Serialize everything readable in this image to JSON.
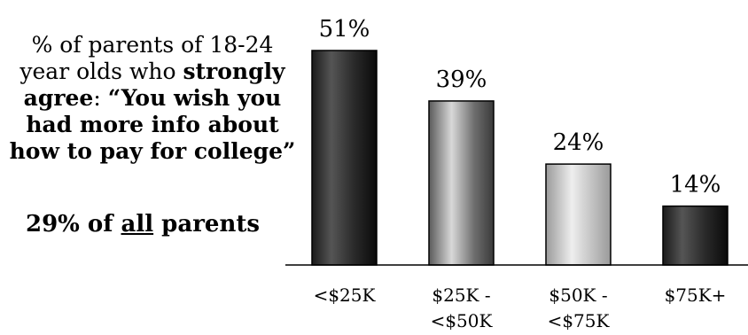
{
  "caption": {
    "line1": "% of parents of 18-24",
    "line2_pre": "year olds who ",
    "line2_bold": "strongly",
    "line3_bold": "agree",
    "line3_mid": ": ",
    "line3_quote": "“You wish you",
    "line4": "had more info about",
    "line5": "how to pay for college”"
  },
  "summary": {
    "pre": "29% of ",
    "underlined": "all",
    "post": " parents"
  },
  "chart_data": {
    "type": "bar",
    "categories": [
      [
        "<$25K"
      ],
      [
        "$25K -",
        "<$50K"
      ],
      [
        "$50K -",
        "<$75K"
      ],
      [
        "$75K+"
      ]
    ],
    "values": [
      51,
      39,
      24,
      14
    ],
    "value_labels": [
      "51%",
      "39%",
      "24%",
      "14%"
    ],
    "ylim": [
      0,
      100
    ],
    "grid": false,
    "legend": "none",
    "bar_fills": [
      "dark-gradient",
      "gray-gradient",
      "light-gray-gradient",
      "dark-gradient"
    ]
  }
}
